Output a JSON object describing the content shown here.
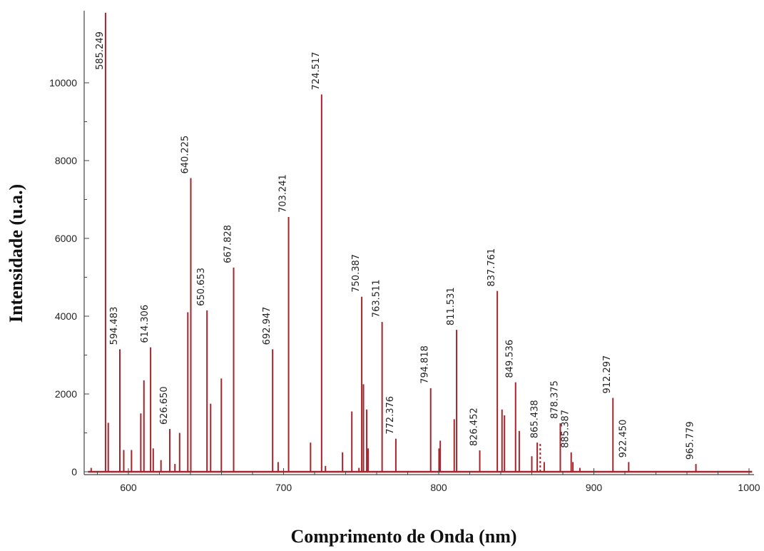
{
  "chart_data": {
    "type": "line",
    "title": "",
    "xlabel": "Comprimento de Onda (nm)",
    "ylabel": "Intensidade  (u.a.)",
    "xlim": [
      574,
      1002
    ],
    "ylim": [
      -100,
      11800
    ],
    "x_ticks": [
      "600",
      "700",
      "800",
      "900",
      "1000"
    ],
    "x_tick_values": [
      600,
      700,
      800,
      900,
      1000
    ],
    "y_ticks": [
      "0",
      "2000",
      "4000",
      "6000",
      "8000",
      "10000"
    ],
    "y_tick_values": [
      0,
      2000,
      4000,
      6000,
      8000,
      10000
    ],
    "grid": false,
    "color": "#a8242c",
    "series": [
      {
        "x": [
          576,
          585.249,
          587,
          594.483,
          597,
          602,
          608,
          610,
          614.306,
          616,
          621,
          626.65,
          630,
          633,
          638.3,
          640.225,
          650.653,
          653,
          659.9,
          667.828,
          692.947,
          696.5,
          703.241,
          717.4,
          724.517,
          727,
          738,
          744,
          748.6,
          750.387,
          751.5,
          753.6,
          754.5,
          763.511,
          772.376,
          794.818,
          800.2,
          801,
          810,
          811.531,
          826.452,
          837.761,
          840.8,
          842.4,
          849.536,
          851.9,
          860,
          863.5,
          865.438,
          868,
          878.375,
          885.387,
          886.5,
          891,
          912.297,
          922.45,
          965.779
        ],
        "y": [
          100,
          11800,
          1260,
          3150,
          560,
          560,
          1500,
          2350,
          3200,
          600,
          300,
          1100,
          200,
          1000,
          4100,
          7550,
          4150,
          1750,
          2400,
          5250,
          3150,
          250,
          6550,
          750,
          9700,
          150,
          500,
          1550,
          100,
          4500,
          2250,
          1600,
          600,
          3850,
          850,
          2150,
          600,
          800,
          1350,
          3650,
          550,
          4650,
          1600,
          1450,
          2300,
          1050,
          400,
          750,
          750,
          250,
          1250,
          500,
          250,
          100,
          1900,
          250,
          200
        ]
      }
    ],
    "annotations": [
      {
        "x": 585.249,
        "y": 11800,
        "text": "585.249"
      },
      {
        "x": 594.483,
        "y": 3150,
        "text": "594.483"
      },
      {
        "x": 614.306,
        "y": 3200,
        "text": "614.306"
      },
      {
        "x": 626.65,
        "y": 1100,
        "text": "626.650"
      },
      {
        "x": 640.225,
        "y": 7550,
        "text": "640.225"
      },
      {
        "x": 650.653,
        "y": 4150,
        "text": "650.653"
      },
      {
        "x": 667.828,
        "y": 5250,
        "text": "667.828"
      },
      {
        "x": 692.947,
        "y": 3150,
        "text": "692.947"
      },
      {
        "x": 703.241,
        "y": 6550,
        "text": "703.241"
      },
      {
        "x": 724.517,
        "y": 9700,
        "text": "724.517"
      },
      {
        "x": 750.387,
        "y": 4500,
        "text": "750.387"
      },
      {
        "x": 763.511,
        "y": 3850,
        "text": "763.511"
      },
      {
        "x": 772.376,
        "y": 850,
        "text": "772.376"
      },
      {
        "x": 794.818,
        "y": 2150,
        "text": "794.818"
      },
      {
        "x": 811.531,
        "y": 3650,
        "text": "811.531"
      },
      {
        "x": 826.452,
        "y": 550,
        "text": "826.452"
      },
      {
        "x": 837.761,
        "y": 4650,
        "text": "837.761"
      },
      {
        "x": 849.536,
        "y": 2300,
        "text": "849.536"
      },
      {
        "x": 865.438,
        "y": 750,
        "text": "865.438"
      },
      {
        "x": 878.375,
        "y": 1250,
        "text": "878.375"
      },
      {
        "x": 885.387,
        "y": 500,
        "text": "885.387"
      },
      {
        "x": 912.297,
        "y": 1900,
        "text": "912.297"
      },
      {
        "x": 922.45,
        "y": 250,
        "text": "922.450"
      },
      {
        "x": 965.779,
        "y": 200,
        "text": "965.779"
      }
    ]
  }
}
